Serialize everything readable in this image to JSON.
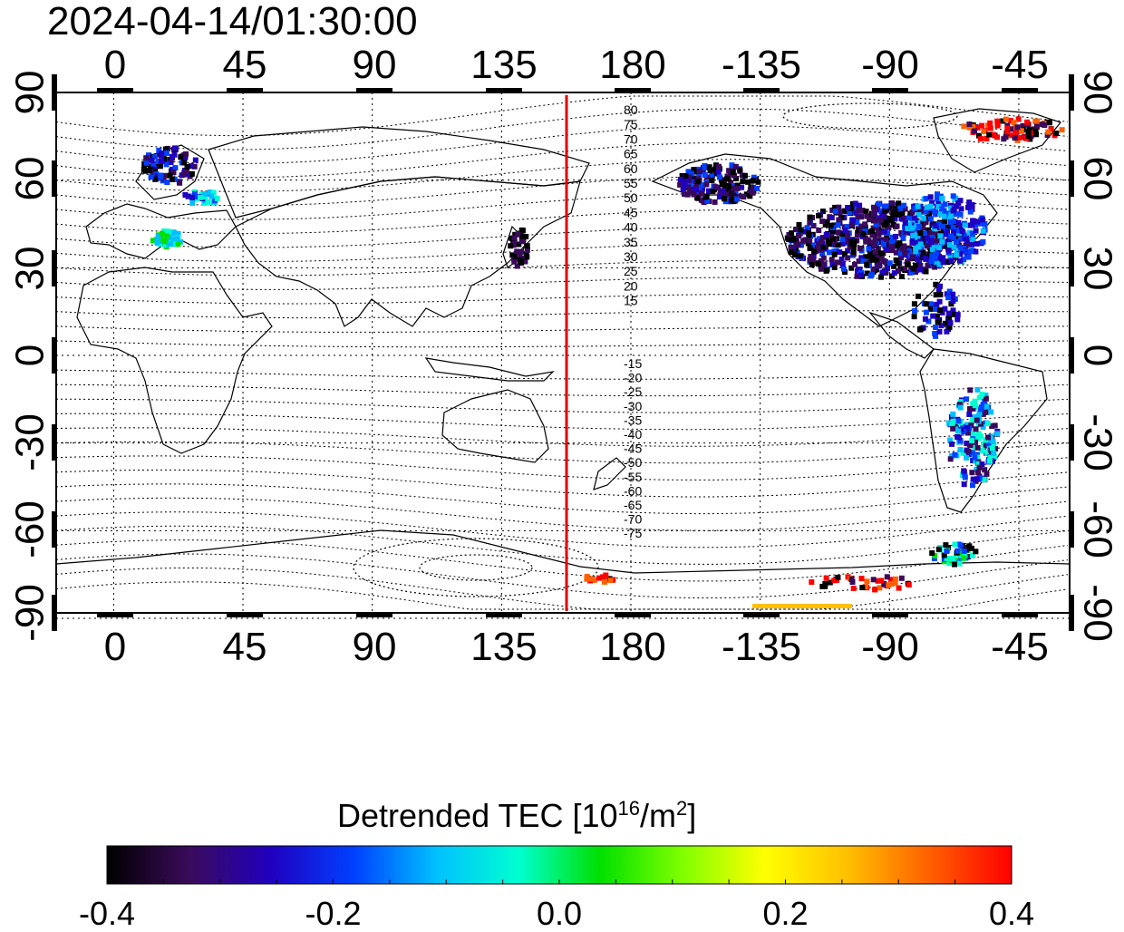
{
  "header": {
    "timestamp": "2024-04-14/01:30:00"
  },
  "map": {
    "projection": "equirectangular",
    "top_lon_labels": [
      "0",
      "45",
      "90",
      "135",
      "180",
      "-135",
      "-90",
      "-45"
    ],
    "bottom_lon_labels": [
      "0",
      "45",
      "90",
      "135",
      "180",
      "-135",
      "-90",
      "-45"
    ],
    "left_lat_labels": [
      "90",
      "60",
      "30",
      "0",
      "-30",
      "-60",
      "-90"
    ],
    "right_lat_labels": [
      "90",
      "60",
      "30",
      "0",
      "-30",
      "-60",
      "-90"
    ],
    "terminator_line_color": "#e00000",
    "north_contour_labels": [
      "80",
      "75",
      "70",
      "65",
      "60",
      "55",
      "50",
      "45",
      "40",
      "35",
      "30",
      "25",
      "20",
      "15"
    ],
    "south_contour_labels": [
      "-15",
      "-20",
      "-25",
      "-30",
      "-35",
      "-40",
      "-45",
      "-50",
      "-55",
      "-60",
      "-65",
      "-70",
      "-75"
    ]
  },
  "colorbar": {
    "title_main": "Detrended TEC  [10",
    "title_exp": "16",
    "title_unit": "/m",
    "title_unit_exp": "2",
    "title_close": "]",
    "min": -0.4,
    "max": 0.4,
    "tick_labels": [
      "-0.4",
      "-0.2",
      "0.0",
      "0.2",
      "0.4"
    ],
    "colors": [
      "#000000",
      "#3a0a5a",
      "#2000c0",
      "#0040ff",
      "#00c0ff",
      "#00ffd0",
      "#00e000",
      "#80ff00",
      "#ffff00",
      "#ffc000",
      "#ff6000",
      "#ff0000"
    ]
  }
}
